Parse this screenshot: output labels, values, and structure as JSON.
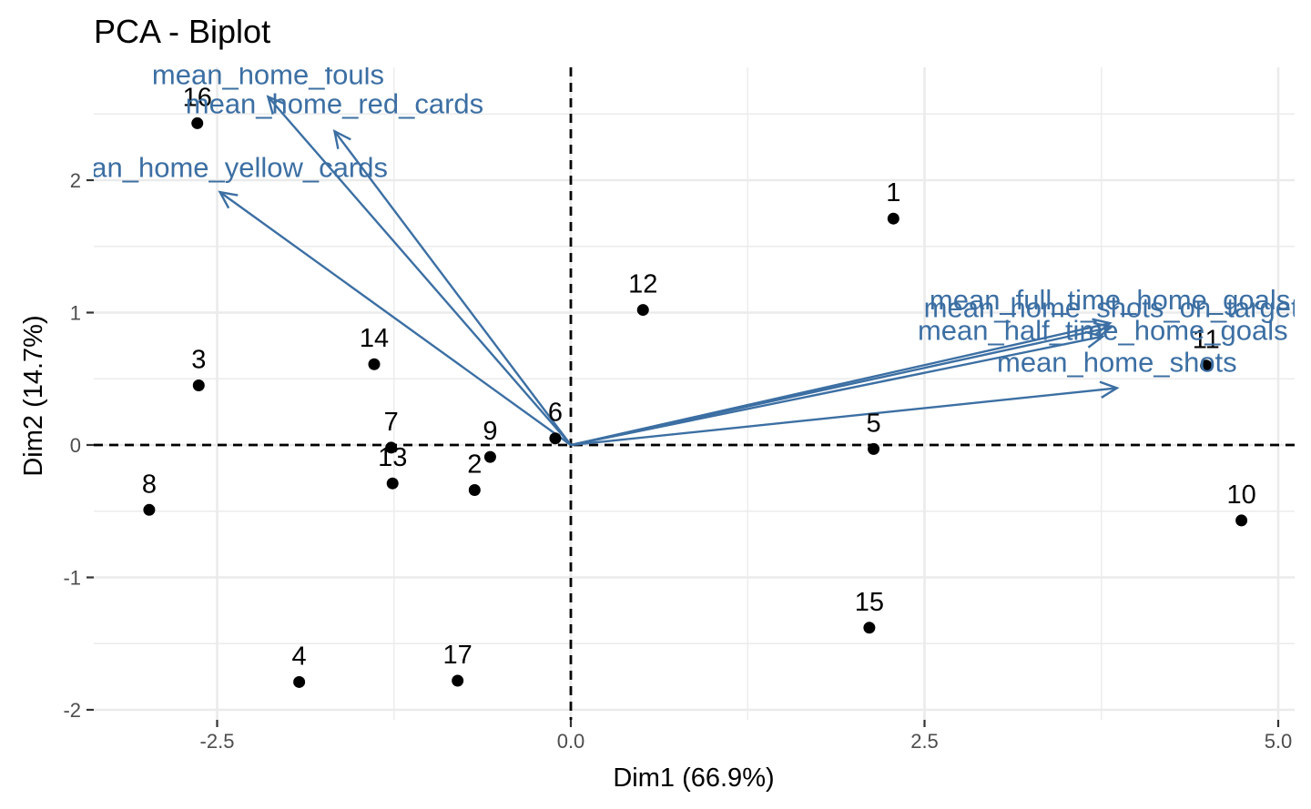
{
  "chart_data": {
    "type": "scatter",
    "title": "PCA - Biplot",
    "xlabel": "Dim1 (66.9%)",
    "ylabel": "Dim2 (14.7%)",
    "xlim": [
      -3.4,
      5.05
    ],
    "ylim": [
      -2.1,
      2.85
    ],
    "xticks": [
      -2.5,
      0.0,
      2.5,
      5.0
    ],
    "xtick_labels": [
      "-2.5",
      "0.0",
      "2.5",
      "5.0"
    ],
    "yticks": [
      -2,
      -1,
      0,
      1,
      2
    ],
    "ytick_labels": [
      "-2",
      "-1",
      "0",
      "1",
      "2"
    ],
    "grid": true,
    "legend": "none",
    "colors": {
      "points": "#000000",
      "variables": "#3c6fa3",
      "grid": "#ebebeb",
      "zero_lines": "#000000"
    },
    "individuals": [
      {
        "label": "1",
        "x": 2.28,
        "y": 1.71
      },
      {
        "label": "2",
        "x": -0.68,
        "y": -0.34
      },
      {
        "label": "3",
        "x": -2.63,
        "y": 0.45
      },
      {
        "label": "4",
        "x": -1.92,
        "y": -1.79
      },
      {
        "label": "5",
        "x": 2.14,
        "y": -0.03
      },
      {
        "label": "6",
        "x": -0.11,
        "y": 0.05
      },
      {
        "label": "7",
        "x": -1.27,
        "y": -0.02
      },
      {
        "label": "8",
        "x": -2.98,
        "y": -0.49
      },
      {
        "label": "9",
        "x": -0.57,
        "y": -0.09
      },
      {
        "label": "10",
        "x": 4.74,
        "y": -0.57
      },
      {
        "label": "11",
        "x": 4.49,
        "y": 0.6
      },
      {
        "label": "12",
        "x": 0.51,
        "y": 1.02
      },
      {
        "label": "13",
        "x": -1.26,
        "y": -0.29
      },
      {
        "label": "14",
        "x": -1.39,
        "y": 0.61
      },
      {
        "label": "15",
        "x": 2.11,
        "y": -1.38
      },
      {
        "label": "16",
        "x": -2.64,
        "y": 2.43
      },
      {
        "label": "17",
        "x": -0.8,
        "y": -1.78
      }
    ],
    "variables": [
      {
        "label": "mean_home_fouls",
        "x": -2.14,
        "y": 2.63,
        "label_x": -2.14,
        "label_y": 2.8
      },
      {
        "label": "mean_home_red_cards",
        "x": -1.67,
        "y": 2.37,
        "label_x": -1.67,
        "label_y": 2.58
      },
      {
        "label": "mean_home_yellow_cards",
        "x": -2.48,
        "y": 1.91,
        "label_x": -2.48,
        "label_y": 2.1
      },
      {
        "label": "mean_full_time_home_goals",
        "x": 3.81,
        "y": 0.92,
        "label_x": 3.81,
        "label_y": 1.1
      },
      {
        "label": "mean_home_shots_on_target",
        "x": 3.82,
        "y": 0.89,
        "label_x": 3.82,
        "label_y": 1.04
      },
      {
        "label": "mean_half_time_home_goals",
        "x": 3.76,
        "y": 0.82,
        "label_x": 3.76,
        "label_y": 0.87
      },
      {
        "label": "mean_home_shots",
        "x": 3.86,
        "y": 0.43,
        "label_x": 3.86,
        "label_y": 0.63
      }
    ]
  }
}
